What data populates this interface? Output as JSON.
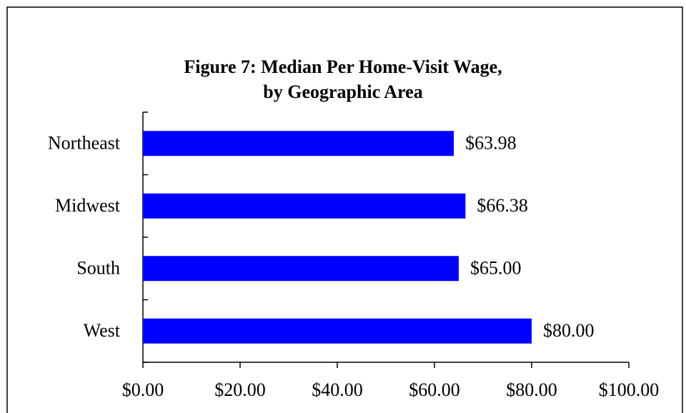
{
  "chart_data": {
    "type": "hbar",
    "title": [
      "Figure 7: Median Per Home-Visit Wage,",
      "by Geographic Area"
    ],
    "categories": [
      "Northeast",
      "Midwest",
      "South",
      "West"
    ],
    "values": [
      63.98,
      66.38,
      65.0,
      80.0
    ],
    "value_labels": [
      "$63.98",
      "$66.38",
      "$65.00",
      "$80.00"
    ],
    "color": "#0000ff",
    "xlim": [
      0,
      100
    ],
    "xticks": [
      {
        "value": 0,
        "label": "$0.00"
      },
      {
        "value": 20,
        "label": "$20.00"
      },
      {
        "value": 40,
        "label": "$40.00"
      },
      {
        "value": 60,
        "label": "$60.00"
      },
      {
        "value": 80,
        "label": "$80.00"
      },
      {
        "value": 100,
        "label": "$100.00"
      }
    ],
    "grid": false
  }
}
